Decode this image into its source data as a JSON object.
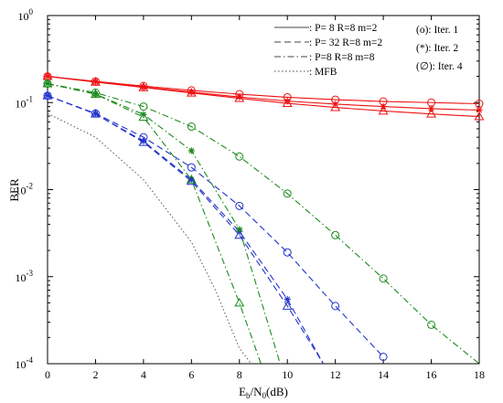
{
  "chart_data": {
    "type": "line",
    "y_scale": "log",
    "xlim": [
      0,
      18
    ],
    "ylim": [
      0.0001,
      1
    ],
    "x_ticks": [
      0,
      2,
      4,
      6,
      8,
      10,
      12,
      14,
      16,
      18
    ],
    "y_ticks": [
      {
        "value": 1,
        "mant": "10",
        "exp": "0"
      },
      {
        "value": 0.1,
        "mant": "10",
        "exp": "-1"
      },
      {
        "value": 0.01,
        "mant": "10",
        "exp": "-2"
      },
      {
        "value": 0.001,
        "mant": "10",
        "exp": "-3"
      },
      {
        "value": 0.0001,
        "mant": "10",
        "exp": "-4"
      }
    ],
    "xlabel": {
      "base": "E",
      "sub1": "b",
      "mid": "/N",
      "sub2": "0",
      "tail": "(dB)"
    },
    "ylabel": "BER",
    "legend_lines": [
      {
        "label": ": P= 8 R=8 m=2",
        "style": "solid"
      },
      {
        "label": ": P= 32 R=8 m=2",
        "style": "dashed"
      },
      {
        "label": ": P=8 R=8 m=8",
        "style": "dashdot"
      },
      {
        "label": ": MFB",
        "style": "dotted"
      }
    ],
    "legend_markers": [
      {
        "label": "(o): Iter. 1"
      },
      {
        "label": "(*): Iter. 2"
      },
      {
        "label": "(∅): Iter. 4"
      }
    ],
    "series": [
      {
        "color": "#ee1111",
        "style": "solid",
        "marker": "circle",
        "x": [
          0,
          2,
          4,
          6,
          8,
          10,
          12,
          14,
          16,
          18
        ],
        "y": [
          0.2,
          0.175,
          0.155,
          0.138,
          0.125,
          0.115,
          0.108,
          0.103,
          0.1,
          0.097
        ]
      },
      {
        "color": "#ee1111",
        "style": "solid",
        "marker": "star",
        "x": [
          0,
          2,
          4,
          6,
          8,
          10,
          12,
          14,
          16,
          18
        ],
        "y": [
          0.2,
          0.173,
          0.151,
          0.132,
          0.116,
          0.104,
          0.096,
          0.09,
          0.085,
          0.082
        ]
      },
      {
        "color": "#ee1111",
        "style": "solid",
        "marker": "triangle",
        "x": [
          0,
          2,
          4,
          6,
          8,
          10,
          12,
          14,
          16,
          18
        ],
        "y": [
          0.2,
          0.172,
          0.149,
          0.129,
          0.112,
          0.098,
          0.088,
          0.08,
          0.074,
          0.069
        ]
      },
      {
        "color": "#2233cc",
        "style": "dashed",
        "marker": "circle",
        "x": [
          0,
          2,
          4,
          6,
          8,
          10,
          12,
          14
        ],
        "y": [
          0.12,
          0.075,
          0.04,
          0.018,
          0.0065,
          0.0019,
          0.00046,
          0.00012
        ]
      },
      {
        "color": "#2233cc",
        "style": "dashed",
        "marker": "star",
        "x": [
          0,
          2,
          4,
          6,
          8,
          10,
          11.5
        ],
        "y": [
          0.12,
          0.074,
          0.036,
          0.013,
          0.0033,
          0.00055,
          0.0001
        ]
      },
      {
        "color": "#2233cc",
        "style": "dashed",
        "marker": "triangle",
        "x": [
          0,
          2,
          4,
          6,
          8,
          10,
          11.5
        ],
        "y": [
          0.12,
          0.074,
          0.035,
          0.0125,
          0.003,
          0.00046,
          0.0001
        ]
      },
      {
        "color": "#1a8a1a",
        "style": "dashdot",
        "marker": "circle",
        "x": [
          0,
          2,
          4,
          6,
          8,
          10,
          12,
          14,
          16,
          18
        ],
        "y": [
          0.165,
          0.13,
          0.09,
          0.053,
          0.024,
          0.009,
          0.003,
          0.00095,
          0.00028,
          0.0001
        ]
      },
      {
        "color": "#1a8a1a",
        "style": "dashdot",
        "marker": "star",
        "x": [
          0,
          2,
          4,
          6,
          8,
          9.7
        ],
        "y": [
          0.165,
          0.125,
          0.073,
          0.028,
          0.0035,
          0.0001
        ]
      },
      {
        "color": "#1a8a1a",
        "style": "dashdot",
        "marker": "triangle",
        "x": [
          0,
          2,
          4,
          6,
          8,
          8.9
        ],
        "y": [
          0.165,
          0.125,
          0.068,
          0.013,
          0.0005,
          0.0001
        ]
      },
      {
        "color": "#555555",
        "style": "dotted",
        "marker": "none",
        "x": [
          0,
          2,
          4,
          6,
          7,
          8,
          8.5
        ],
        "y": [
          0.075,
          0.04,
          0.013,
          0.0025,
          0.0007,
          0.00015,
          0.0001
        ]
      }
    ]
  }
}
